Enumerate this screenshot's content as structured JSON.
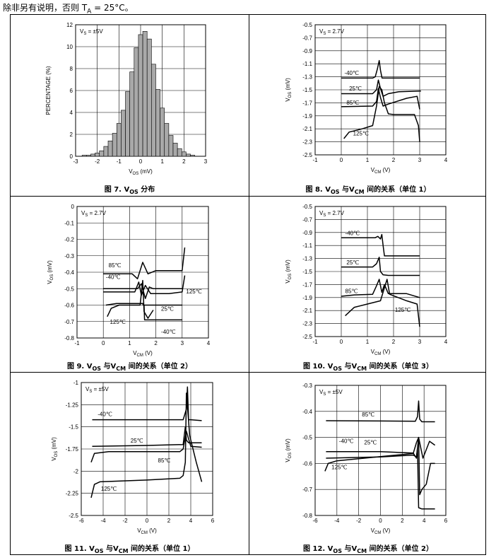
{
  "header": {
    "prefix": "除非另有说明，否则 T",
    "sub": "A",
    "suffix": " = 25°C。"
  },
  "chart_data": [
    {
      "id": "fig7",
      "type": "bar",
      "caption": {
        "a": "图 7. V",
        "s": "OS",
        "b": " 分布"
      },
      "xlabel": {
        "a": "V",
        "s": "OS",
        "b": " (mV)"
      },
      "ylabel": "PERCENTAGE (%)",
      "condition": "VS = ±5V",
      "xlim": [
        -3,
        3
      ],
      "ylim": [
        0,
        12
      ],
      "xticks": [
        -3,
        -2,
        -1,
        0,
        1,
        2,
        3
      ],
      "yticks": [
        0,
        2,
        4,
        6,
        8,
        10,
        12
      ],
      "bin_width": 0.2,
      "bins": [
        -2.6,
        -2.4,
        -2.2,
        -2.0,
        -1.8,
        -1.6,
        -1.4,
        -1.2,
        -1.0,
        -0.8,
        -0.6,
        -0.4,
        -0.2,
        0.0,
        0.2,
        0.4,
        0.6,
        0.8,
        1.0,
        1.2,
        1.4,
        1.6,
        1.8,
        2.0,
        2.2,
        2.4
      ],
      "values": [
        0.1,
        0.1,
        0.2,
        0.3,
        0.5,
        0.9,
        1.4,
        2.1,
        3.0,
        4.2,
        5.9,
        7.7,
        9.9,
        11.1,
        11.4,
        10.7,
        8.4,
        6.1,
        4.4,
        3.0,
        1.9,
        1.2,
        0.7,
        0.4,
        0.2,
        0.1
      ]
    },
    {
      "id": "fig8",
      "type": "line",
      "caption": {
        "a": "图 8. V",
        "s": "OS",
        "m": " 与V",
        "s2": "CM",
        "b": " 间的关系（单位 1）"
      },
      "xlabel": {
        "a": "V",
        "s": "CM",
        "b": " (V)"
      },
      "ylabel": {
        "a": "V",
        "s": "OS",
        "b": " (mV)"
      },
      "condition": "VS = 2.7V",
      "xlim": [
        -1,
        4
      ],
      "ylim": [
        -2.5,
        -0.5
      ],
      "xticks": [
        -1,
        0,
        1,
        2,
        3,
        4
      ],
      "yticks": [
        -0.5,
        -0.7,
        -0.9,
        -1.1,
        -1.3,
        -1.5,
        -1.7,
        -1.9,
        -2.1,
        -2.3,
        -2.5
      ],
      "series": [
        {
          "name": "-40℃",
          "x": [
            0,
            1.2,
            1.3,
            1.38,
            1.45,
            1.5,
            1.56,
            1.65,
            3
          ],
          "y": [
            -1.32,
            -1.32,
            -1.3,
            -1.18,
            -1.05,
            -1.2,
            -1.32,
            -1.32,
            -1.32
          ]
        },
        {
          "name": "25℃",
          "x": [
            0,
            1.2,
            1.35,
            1.42,
            1.5,
            1.6,
            1.8,
            2.2,
            3,
            3.05
          ],
          "y": [
            -1.56,
            -1.56,
            -1.5,
            -1.35,
            -1.48,
            -1.6,
            -1.56,
            -1.53,
            -1.52,
            -1.52
          ]
        },
        {
          "name": "85℃",
          "x": [
            0,
            1.2,
            1.35,
            1.42,
            1.5,
            1.6,
            1.8,
            2.5,
            2.9,
            3.0
          ],
          "y": [
            -1.76,
            -1.75,
            -1.68,
            -1.48,
            -1.62,
            -1.75,
            -1.72,
            -1.63,
            -1.6,
            -1.8
          ]
        },
        {
          "name": "125℃",
          "x": [
            0.1,
            0.3,
            0.8,
            1.2,
            1.35,
            1.45,
            1.55,
            1.65,
            1.8,
            2.0,
            2.8,
            2.95,
            3.0
          ],
          "y": [
            -2.25,
            -2.15,
            -2.1,
            -2.05,
            -1.75,
            -1.45,
            -1.5,
            -1.7,
            -1.87,
            -1.88,
            -1.88,
            -2.05,
            -2.3
          ]
        }
      ],
      "annotations": [
        {
          "text": "-40℃",
          "x": 0.12,
          "y": -1.27
        },
        {
          "text": "25℃",
          "x": 0.3,
          "y": -1.51
        },
        {
          "text": "85℃",
          "x": 0.2,
          "y": -1.73
        },
        {
          "text": "125℃",
          "x": 0.45,
          "y": -2.2
        }
      ]
    },
    {
      "id": "fig9",
      "type": "line",
      "caption": {
        "a": "图 9. V",
        "s": "OS",
        "m": " 与V",
        "s2": "CM",
        "b": " 间的关系（单位 2）"
      },
      "xlabel": {
        "a": "V",
        "s": "CM",
        "b": " (V)"
      },
      "ylabel": {
        "a": "V",
        "s": "OS",
        "b": " (mV)"
      },
      "condition": "VS = 2.7V",
      "xlim": [
        -1,
        4
      ],
      "ylim": [
        -0.8,
        0
      ],
      "xticks": [
        -1,
        0,
        1,
        2,
        3,
        4
      ],
      "yticks": [
        0,
        -0.1,
        -0.2,
        -0.3,
        -0.4,
        -0.5,
        -0.6,
        -0.7,
        -0.8
      ],
      "series": [
        {
          "name": "85℃",
          "x": [
            0,
            1.1,
            1.3,
            1.5,
            1.7,
            2.0,
            2.6,
            3.0,
            3.1
          ],
          "y": [
            -0.41,
            -0.41,
            -0.44,
            -0.34,
            -0.41,
            -0.39,
            -0.39,
            -0.39,
            -0.25
          ]
        },
        {
          "name": "-40℃ upper",
          "x": [
            0,
            1.3,
            1.45,
            1.6,
            1.75,
            1.9,
            3.0
          ],
          "y": [
            -0.5,
            -0.5,
            -0.47,
            -0.56,
            -0.49,
            -0.5,
            -0.5
          ]
        },
        {
          "name": "125℃",
          "x": [
            0,
            1.2,
            1.35,
            1.45,
            1.6,
            1.8,
            2.5,
            3.0,
            3.1
          ],
          "y": [
            -0.52,
            -0.52,
            -0.46,
            -0.54,
            -0.48,
            -0.53,
            -0.53,
            -0.52,
            -0.42
          ]
        },
        {
          "name": "25℃",
          "x": [
            0.1,
            0.5,
            1.5,
            1.52,
            3.0
          ],
          "y": [
            -0.6,
            -0.59,
            -0.59,
            -0.6,
            -0.6
          ]
        },
        {
          "name": "125℃ lower",
          "x": [
            0.15,
            0.3,
            0.6,
            1.1,
            1.4,
            1.5,
            1.55,
            1.7,
            1.9
          ],
          "y": [
            -0.67,
            -0.62,
            -0.6,
            -0.6,
            -0.6,
            -0.45,
            -0.64,
            -0.68,
            -0.63
          ]
        },
        {
          "name": "-40℃ lower",
          "x": [
            1.55,
            1.57,
            3.0
          ],
          "y": [
            -0.6,
            -0.69,
            -0.69
          ]
        }
      ],
      "annotations": [
        {
          "text": "85℃",
          "x": 0.2,
          "y": -0.37
        },
        {
          "text": "-40℃",
          "x": 0.1,
          "y": -0.44
        },
        {
          "text": "125℃",
          "x": 3.15,
          "y": -0.53
        },
        {
          "text": "25℃",
          "x": 2.2,
          "y": -0.635
        },
        {
          "text": "125℃",
          "x": 0.25,
          "y": -0.715
        },
        {
          "text": "-40℃",
          "x": 2.2,
          "y": -0.775
        }
      ]
    },
    {
      "id": "fig10",
      "type": "line",
      "caption": {
        "a": "图 10. V",
        "s": "OS",
        "m": " 与V",
        "s2": "CM",
        "b": " 间的关系（单位 3）"
      },
      "xlabel": {
        "a": "V",
        "s": "CM",
        "b": " (V)"
      },
      "ylabel": {
        "a": "V",
        "s": "OS",
        "b": " (mV)"
      },
      "condition": "VS = 2.7V",
      "xlim": [
        -1,
        4
      ],
      "ylim": [
        -2.5,
        -0.5
      ],
      "xticks": [
        -1,
        0,
        1,
        2,
        3,
        4
      ],
      "yticks": [
        -0.5,
        -0.7,
        -0.9,
        -1.1,
        -1.3,
        -1.5,
        -1.7,
        -1.9,
        -2.1,
        -2.3,
        -2.5
      ],
      "series": [
        {
          "name": "-40℃",
          "x": [
            0,
            1.3,
            1.4,
            1.5,
            1.55,
            1.6,
            1.65,
            3
          ],
          "y": [
            -0.98,
            -0.98,
            -0.96,
            -1.0,
            -0.93,
            -1.1,
            -1.26,
            -1.26
          ]
        },
        {
          "name": "25℃",
          "x": [
            0,
            1.2,
            1.35,
            1.45,
            1.5,
            1.6,
            1.8,
            3
          ],
          "y": [
            -1.43,
            -1.43,
            -1.38,
            -1.28,
            -1.5,
            -1.55,
            -1.56,
            -1.56
          ]
        },
        {
          "name": "85℃",
          "x": [
            0,
            0.5,
            1.2,
            1.35,
            1.45,
            1.55,
            1.65,
            1.8,
            2.5,
            3.0
          ],
          "y": [
            -1.88,
            -1.86,
            -1.85,
            -1.72,
            -1.62,
            -1.82,
            -1.7,
            -1.84,
            -1.84,
            -1.9
          ]
        },
        {
          "name": "125℃",
          "x": [
            0.15,
            0.5,
            1.0,
            1.5,
            1.65,
            1.75,
            1.85,
            2.5,
            2.9,
            3.0
          ],
          "y": [
            -2.18,
            -2.05,
            -2.0,
            -1.95,
            -1.75,
            -1.62,
            -1.85,
            -1.95,
            -2.0,
            -2.35
          ]
        }
      ],
      "annotations": [
        {
          "text": "-40℃",
          "x": 0.15,
          "y": -0.94
        },
        {
          "text": "25℃",
          "x": 0.2,
          "y": -1.39
        },
        {
          "text": "85℃",
          "x": 0.15,
          "y": -1.83
        },
        {
          "text": "125℃",
          "x": 2.05,
          "y": -2.12
        }
      ]
    },
    {
      "id": "fig11",
      "type": "line",
      "caption": {
        "a": "图 11. V",
        "s": "OS",
        "m": " 与V",
        "s2": "CM",
        "b": " 间的关系（单位 1）"
      },
      "xlabel": {
        "a": "V",
        "s": "CM",
        "b": " (V)"
      },
      "ylabel": {
        "a": "V",
        "s": "OS",
        "b": " (mV)"
      },
      "condition": "VS = ±5V",
      "xlim": [
        -6,
        6
      ],
      "ylim": [
        -2.5,
        -1
      ],
      "xticks": [
        -6,
        -4,
        -2,
        0,
        2,
        4,
        6
      ],
      "yticks": [
        -1,
        -1.25,
        -1.5,
        -1.75,
        -2,
        -2.25,
        -2.5
      ],
      "series": [
        {
          "name": "-40℃",
          "x": [
            -5,
            0,
            3.3,
            3.6,
            3.7,
            3.8,
            4.0,
            5.0
          ],
          "y": [
            -1.42,
            -1.42,
            -1.42,
            -1.3,
            -1.05,
            -1.42,
            -1.42,
            -1.43
          ]
        },
        {
          "name": "25℃",
          "x": [
            -5,
            0,
            3.3,
            3.5,
            3.6,
            3.8,
            4.0,
            5.0
          ],
          "y": [
            -1.72,
            -1.71,
            -1.7,
            -1.5,
            -1.65,
            -1.68,
            -1.68,
            -1.68
          ]
        },
        {
          "name": "85℃",
          "x": [
            -5.1,
            -4.8,
            -3.5,
            0,
            3.0,
            3.3,
            3.6,
            4.0,
            5.0
          ],
          "y": [
            -1.9,
            -1.8,
            -1.78,
            -1.78,
            -1.78,
            -1.75,
            -1.55,
            -1.72,
            -1.73
          ]
        },
        {
          "name": "125℃",
          "x": [
            -5.1,
            -4.8,
            -4.3,
            0,
            3.0,
            3.3,
            3.5,
            3.6,
            3.9,
            4.5,
            5.0
          ],
          "y": [
            -2.3,
            -2.15,
            -2.12,
            -2.1,
            -2.08,
            -2.05,
            -1.9,
            -1.12,
            -1.6,
            -1.9,
            -2.12
          ]
        }
      ],
      "annotations": [
        {
          "text": "-40℃",
          "x": -4.5,
          "y": -1.38
        },
        {
          "text": "25℃",
          "x": -1.5,
          "y": -1.68
        },
        {
          "text": "85℃",
          "x": 1.0,
          "y": -1.9
        },
        {
          "text": "125℃",
          "x": -4.2,
          "y": -2.22
        }
      ]
    },
    {
      "id": "fig12",
      "type": "line",
      "caption": {
        "a": "图 12. V",
        "s": "OS",
        "m": " 与V",
        "s2": "CM",
        "b": " 间的关系（单位 2）"
      },
      "xlabel": {
        "a": "V",
        "s": "CM",
        "b": " (V)"
      },
      "ylabel": {
        "a": "V",
        "s": "OS",
        "b": " (mV)"
      },
      "condition": "VS = ±5V",
      "xlim": [
        -6,
        6
      ],
      "ylim": [
        -0.8,
        -0.3
      ],
      "xticks": [
        -6,
        -4,
        -2,
        0,
        2,
        4,
        6
      ],
      "yticks": [
        -0.3,
        -0.4,
        -0.5,
        -0.6,
        -0.7,
        -0.8
      ],
      "series": [
        {
          "name": "85℃",
          "x": [
            -5,
            0,
            3.2,
            3.4,
            3.5,
            3.6,
            3.8,
            5.0
          ],
          "y": [
            -0.436,
            -0.437,
            -0.438,
            -0.42,
            -0.36,
            -0.43,
            -0.44,
            -0.44
          ]
        },
        {
          "name": "-40℃",
          "x": [
            -5,
            0,
            3.0,
            3.3,
            3.5,
            3.6,
            3.8,
            4.2,
            4.6,
            5.0
          ],
          "y": [
            -0.555,
            -0.555,
            -0.56,
            -0.58,
            -0.5,
            -0.72,
            -0.7,
            -0.68,
            -0.6,
            -0.6
          ]
        },
        {
          "name": "25℃",
          "x": [
            -5,
            0,
            3.0,
            3.3,
            3.4,
            3.5,
            3.8,
            5.0
          ],
          "y": [
            -0.58,
            -0.575,
            -0.568,
            -0.575,
            -0.54,
            -0.77,
            -0.775,
            -0.775
          ]
        },
        {
          "name": "125℃",
          "x": [
            -5.1,
            -4.8,
            -4.0,
            0,
            3.0,
            3.3,
            3.5,
            3.7,
            3.9,
            4.5,
            5.0
          ],
          "y": [
            -0.63,
            -0.6,
            -0.59,
            -0.574,
            -0.562,
            -0.52,
            -0.5,
            -0.54,
            -0.58,
            -0.515,
            -0.53
          ]
        }
      ],
      "annotations": [
        {
          "text": "85℃",
          "x": -1.7,
          "y": -0.42
        },
        {
          "text": "-40℃",
          "x": -3.8,
          "y": -0.522
        },
        {
          "text": "25℃",
          "x": -1.5,
          "y": -0.527
        },
        {
          "text": "125℃",
          "x": -4.5,
          "y": -0.622
        }
      ]
    }
  ]
}
